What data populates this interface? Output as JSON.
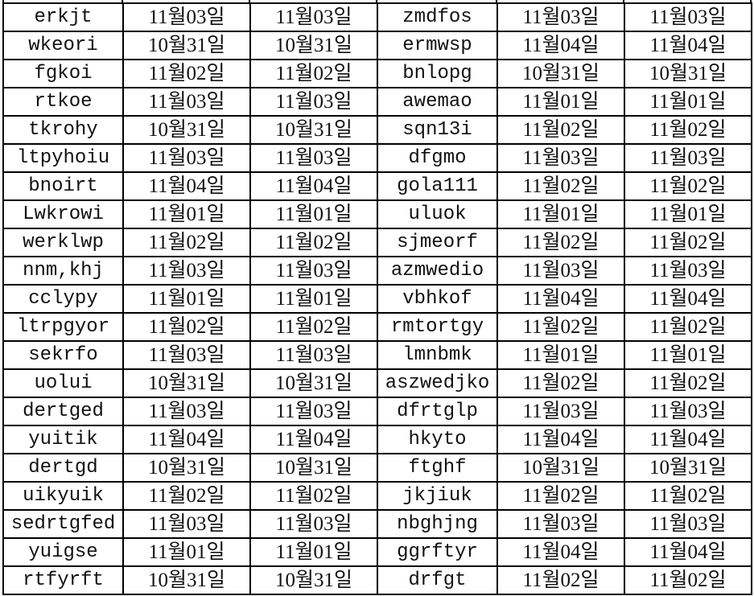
{
  "rows": [
    [
      "erkjt",
      "11월03일",
      "11월03일",
      "zmdfos",
      "11월03일",
      "11월03일"
    ],
    [
      "wkeori",
      "10월31일",
      "10월31일",
      "ermwsp",
      "11월04일",
      "11월04일"
    ],
    [
      "fgkoi",
      "11월02일",
      "11월02일",
      "bnlopg",
      "10월31일",
      "10월31일"
    ],
    [
      "rtkoe",
      "11월03일",
      "11월03일",
      "awemao",
      "11월01일",
      "11월01일"
    ],
    [
      "tkrohy",
      "10월31일",
      "10월31일",
      "sqn13i",
      "11월02일",
      "11월02일"
    ],
    [
      "ltpyhoiu",
      "11월03일",
      "11월03일",
      "dfgmo",
      "11월03일",
      "11월03일"
    ],
    [
      "bnoirt",
      "11월04일",
      "11월04일",
      "gola111",
      "11월02일",
      "11월02일"
    ],
    [
      "Lwkrowi",
      "11월01일",
      "11월01일",
      "uluok",
      "11월01일",
      "11월01일"
    ],
    [
      "werklwp",
      "11월02일",
      "11월02일",
      "sjmeorf",
      "11월02일",
      "11월02일"
    ],
    [
      "nnm,khj",
      "11월03일",
      "11월03일",
      "azmwedio",
      "11월03일",
      "11월03일"
    ],
    [
      "cclypy",
      "11월01일",
      "11월01일",
      "vbhkof",
      "11월04일",
      "11월04일"
    ],
    [
      "ltrpgyor",
      "11월02일",
      "11월02일",
      "rmtortgy",
      "11월02일",
      "11월02일"
    ],
    [
      "sekrfo",
      "11월03일",
      "11월03일",
      "lmnbmk",
      "11월01일",
      "11월01일"
    ],
    [
      "uolui",
      "10월31일",
      "10월31일",
      "aszwedjko",
      "11월02일",
      "11월02일"
    ],
    [
      "dertged",
      "11월03일",
      "11월03일",
      "dfrtglp",
      "11월03일",
      "11월03일"
    ],
    [
      "yuitik",
      "11월04일",
      "11월04일",
      "hkyto",
      "11월04일",
      "11월04일"
    ],
    [
      "dertgd",
      "10월31일",
      "10월31일",
      "ftghf",
      "10월31일",
      "10월31일"
    ],
    [
      "uikyuik",
      "11월02일",
      "11월02일",
      "jkjiuk",
      "11월02일",
      "11월02일"
    ],
    [
      "sedrtgfed",
      "11월03일",
      "11월03일",
      "nbghjng",
      "11월03일",
      "11월03일"
    ],
    [
      "yuigse",
      "11월01일",
      "11월01일",
      "ggrftyr",
      "11월04일",
      "11월04일"
    ],
    [
      "rtfyrft",
      "10월31일",
      "10월31일",
      "drfgt",
      "11월02일",
      "11월02일"
    ]
  ]
}
